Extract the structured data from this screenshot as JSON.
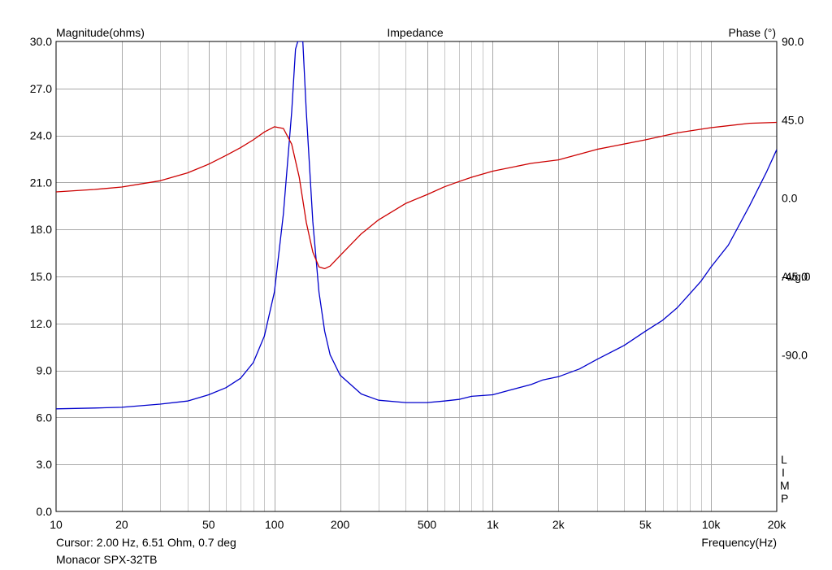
{
  "chart_data": {
    "type": "line",
    "title": "Impedance",
    "ylabel_left": "Magnitude(ohms)",
    "ylabel_right": "Phase (°)",
    "xlabel": "Frequency(Hz)",
    "x_scale": "log",
    "xlim": [
      10,
      20000
    ],
    "ylim_left": [
      0,
      30
    ],
    "ylim_right": [
      -180,
      90
    ],
    "x_ticks": [
      {
        "value": 10,
        "label": "10"
      },
      {
        "value": 20,
        "label": "20"
      },
      {
        "value": 50,
        "label": "50"
      },
      {
        "value": 100,
        "label": "100"
      },
      {
        "value": 200,
        "label": "200"
      },
      {
        "value": 500,
        "label": "500"
      },
      {
        "value": 1000,
        "label": "1k"
      },
      {
        "value": 2000,
        "label": "2k"
      },
      {
        "value": 5000,
        "label": "5k"
      },
      {
        "value": 10000,
        "label": "10k"
      },
      {
        "value": 20000,
        "label": "20k"
      }
    ],
    "y_ticks_left": [
      {
        "value": 0,
        "label": "0.0"
      },
      {
        "value": 3,
        "label": "3.0"
      },
      {
        "value": 6,
        "label": "6.0"
      },
      {
        "value": 9,
        "label": "9.0"
      },
      {
        "value": 12,
        "label": "12.0"
      },
      {
        "value": 15,
        "label": "15.0"
      },
      {
        "value": 18,
        "label": "18.0"
      },
      {
        "value": 21,
        "label": "21.0"
      },
      {
        "value": 24,
        "label": "24.0"
      },
      {
        "value": 27,
        "label": "27.0"
      },
      {
        "value": 30,
        "label": "30.0"
      }
    ],
    "y_ticks_right": [
      {
        "value": 90,
        "label": "90.0"
      },
      {
        "value": 45,
        "label": "45.0"
      },
      {
        "value": 0,
        "label": "0.0"
      },
      {
        "value": -45,
        "label": "-45.0"
      },
      {
        "value": -90,
        "label": "-90.0"
      }
    ],
    "right_annotation": "Avg:0",
    "right_annotation_value": -45,
    "grid": true,
    "series": [
      {
        "axis": "left",
        "color": "#0000cc",
        "points": [
          [
            10,
            6.55
          ],
          [
            15,
            6.6
          ],
          [
            20,
            6.65
          ],
          [
            30,
            6.85
          ],
          [
            40,
            7.05
          ],
          [
            50,
            7.45
          ],
          [
            60,
            7.9
          ],
          [
            70,
            8.5
          ],
          [
            80,
            9.5
          ],
          [
            90,
            11.2
          ],
          [
            100,
            14.0
          ],
          [
            110,
            19.0
          ],
          [
            120,
            25.5
          ],
          [
            125,
            29.5
          ],
          [
            128,
            30.0
          ],
          [
            135,
            30.0
          ],
          [
            140,
            25.5
          ],
          [
            150,
            18.5
          ],
          [
            160,
            14.0
          ],
          [
            170,
            11.5
          ],
          [
            180,
            10.0
          ],
          [
            200,
            8.7
          ],
          [
            250,
            7.5
          ],
          [
            300,
            7.1
          ],
          [
            400,
            6.95
          ],
          [
            500,
            6.95
          ],
          [
            600,
            7.05
          ],
          [
            700,
            7.15
          ],
          [
            800,
            7.35
          ],
          [
            1000,
            7.45
          ],
          [
            1200,
            7.75
          ],
          [
            1500,
            8.1
          ],
          [
            1700,
            8.4
          ],
          [
            2000,
            8.6
          ],
          [
            2500,
            9.1
          ],
          [
            3000,
            9.7
          ],
          [
            4000,
            10.6
          ],
          [
            5000,
            11.5
          ],
          [
            6000,
            12.2
          ],
          [
            7000,
            13.0
          ],
          [
            8000,
            13.9
          ],
          [
            9000,
            14.7
          ],
          [
            10000,
            15.6
          ],
          [
            12000,
            17.0
          ],
          [
            15000,
            19.5
          ],
          [
            18000,
            21.7
          ],
          [
            20000,
            23.1
          ]
        ]
      },
      {
        "axis": "right",
        "color": "#cc0000",
        "points": [
          [
            10,
            3.6
          ],
          [
            15,
            5.0
          ],
          [
            20,
            6.4
          ],
          [
            30,
            10.0
          ],
          [
            40,
            14.5
          ],
          [
            50,
            19.5
          ],
          [
            60,
            24.5
          ],
          [
            70,
            29.0
          ],
          [
            80,
            33.5
          ],
          [
            90,
            38.0
          ],
          [
            100,
            41.0
          ],
          [
            110,
            40.0
          ],
          [
            120,
            31.0
          ],
          [
            130,
            12.0
          ],
          [
            140,
            -14.0
          ],
          [
            150,
            -31.0
          ],
          [
            160,
            -39.5
          ],
          [
            170,
            -40.5
          ],
          [
            180,
            -39.0
          ],
          [
            200,
            -33.0
          ],
          [
            250,
            -20.5
          ],
          [
            300,
            -12.5
          ],
          [
            400,
            -3.0
          ],
          [
            500,
            2.0
          ],
          [
            600,
            6.5
          ],
          [
            700,
            9.5
          ],
          [
            800,
            12.0
          ],
          [
            1000,
            15.5
          ],
          [
            1500,
            20.0
          ],
          [
            2000,
            22.0
          ],
          [
            3000,
            28.0
          ],
          [
            5000,
            33.5
          ],
          [
            7000,
            37.5
          ],
          [
            10000,
            40.5
          ],
          [
            15000,
            43.0
          ],
          [
            20000,
            43.5
          ]
        ]
      }
    ]
  },
  "footer": {
    "cursor": "Cursor: 2.00 Hz, 6.51 Ohm, 0.7 deg",
    "device": "Monacor SPX-32TB"
  },
  "side_letters": [
    "L",
    "I",
    "M",
    "P"
  ]
}
